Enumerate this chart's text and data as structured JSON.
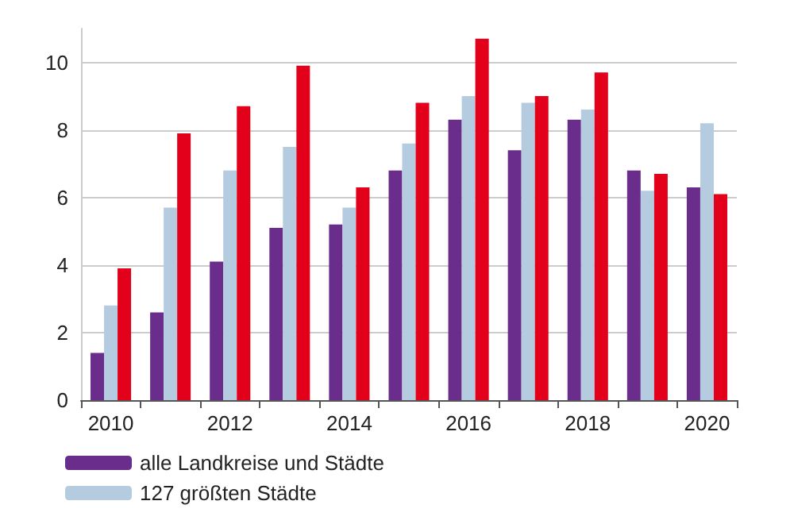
{
  "chart_data": {
    "type": "bar",
    "categories": [
      "2010",
      null,
      "2012",
      null,
      "2014",
      null,
      "2016",
      null,
      "2018",
      null,
      "2020"
    ],
    "series": [
      {
        "name": "alle Landkreise und Städte",
        "color": "#6b2d8b",
        "values": [
          1.4,
          2.6,
          4.1,
          5.1,
          5.2,
          6.8,
          8.3,
          7.4,
          8.3,
          6.8,
          6.3
        ]
      },
      {
        "name": "127 größten Städte",
        "color": "#b4cbe0",
        "values": [
          2.8,
          5.7,
          6.8,
          7.5,
          5.7,
          7.6,
          9.0,
          8.8,
          8.6,
          6.2,
          8.2
        ]
      },
      {
        "color": "#e2001a",
        "values": [
          3.9,
          7.9,
          8.7,
          9.9,
          6.3,
          8.8,
          10.7,
          9.0,
          9.7,
          6.7,
          6.1
        ]
      }
    ],
    "ylim": [
      0,
      11
    ],
    "yticks": [
      0,
      2,
      4,
      6,
      8,
      10
    ],
    "grid": "y",
    "legend": "bottom"
  }
}
